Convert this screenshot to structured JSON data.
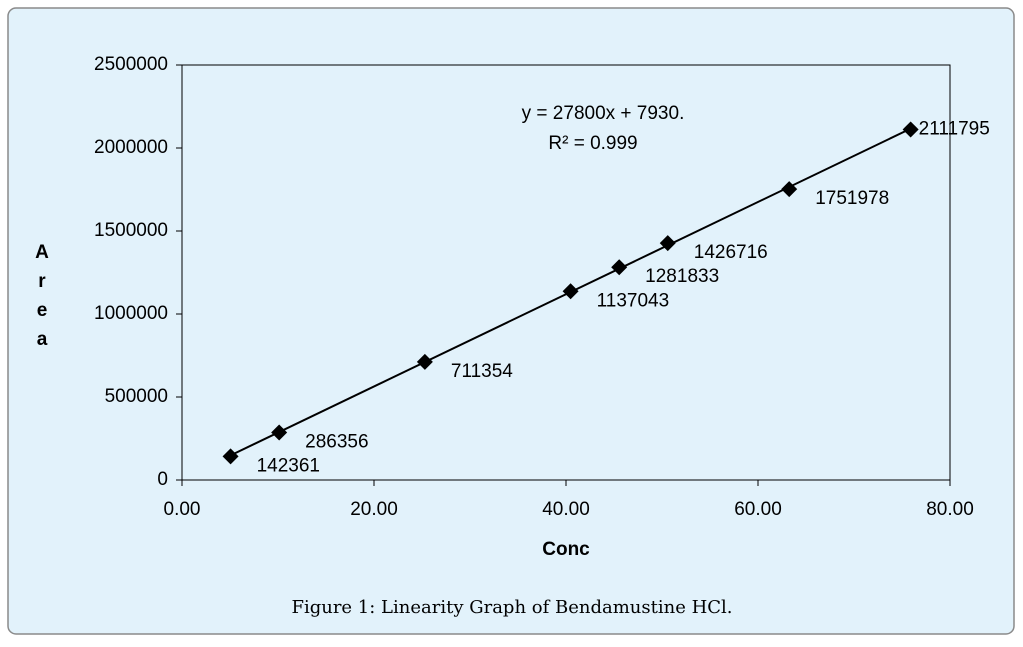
{
  "chart_data": {
    "type": "scatter",
    "caption": "Figure 1: Linearity Graph of Bendamustine HCl.",
    "xlabel": "Conc",
    "ylabel": "Area",
    "equation": "y = 27800x + 7930.",
    "r_squared": "R² = 0.999",
    "x": [
      5.06,
      10.12,
      25.3,
      40.48,
      45.54,
      50.6,
      63.25,
      75.9
    ],
    "series": [
      {
        "color": "#000000",
        "values": [
          142361,
          286356,
          711354,
          1137043,
          1281833,
          1426716,
          1751978,
          2111795
        ]
      }
    ],
    "xlim": [
      0,
      80
    ],
    "xticks": [
      {
        "value": 0,
        "label": "0.00"
      },
      {
        "value": 20,
        "label": "20.00"
      },
      {
        "value": 40,
        "label": "40.00"
      },
      {
        "value": 60,
        "label": "60.00"
      },
      {
        "value": 80,
        "label": "80.00"
      }
    ],
    "ylim": [
      0,
      2500000
    ],
    "yticks": [
      0,
      500000,
      1000000,
      1500000,
      2000000,
      2500000
    ],
    "trendline": true,
    "grid": false
  }
}
